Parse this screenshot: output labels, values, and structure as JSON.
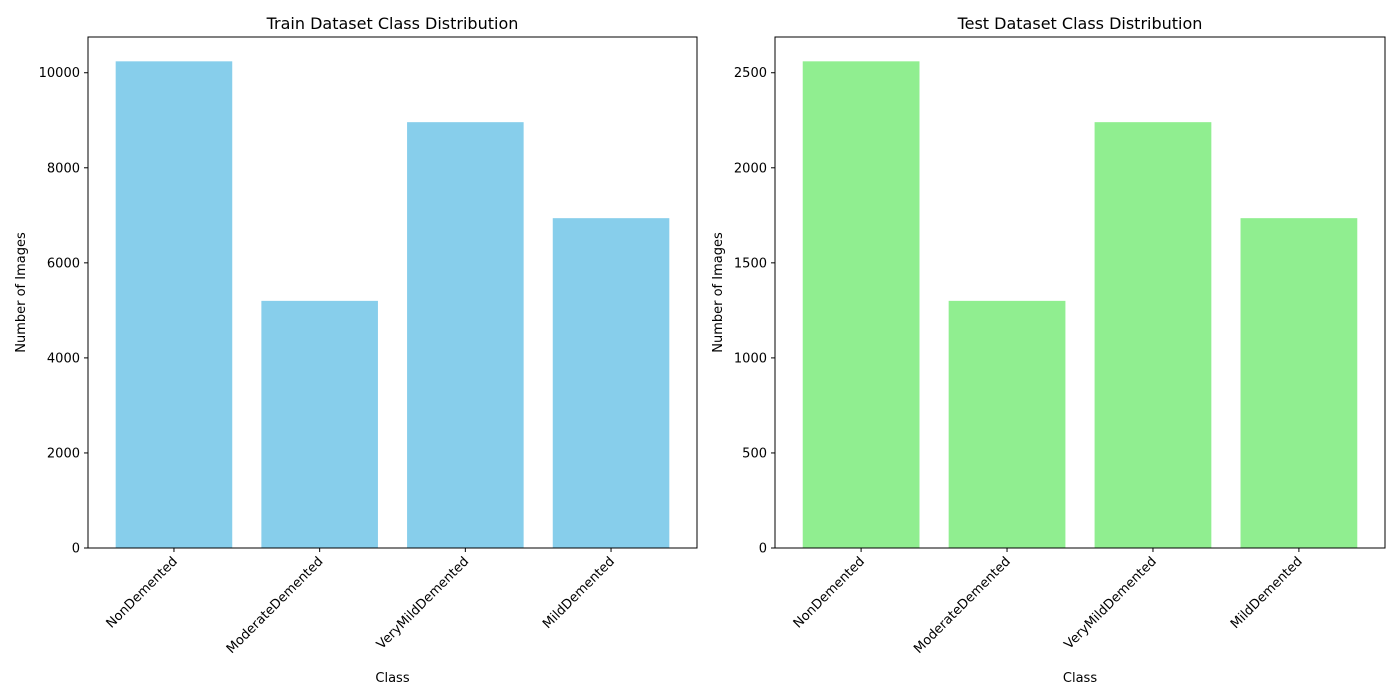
{
  "chart_data": [
    {
      "type": "bar",
      "title": "Train Dataset Class Distribution",
      "xlabel": "Class",
      "ylabel": "Number of Images",
      "categories": [
        "NonDemented",
        "ModerateDemented",
        "VeryMildDemented",
        "MildDemented"
      ],
      "values": [
        10240,
        5200,
        8960,
        6940
      ],
      "ylim": [
        0,
        10752
      ],
      "yticks": [
        0,
        2000,
        4000,
        6000,
        8000,
        10000
      ],
      "ytick_labels": [
        "0",
        "2000",
        "4000",
        "6000",
        "8000",
        "10000"
      ],
      "bar_color": "#87ceeb",
      "grid": false
    },
    {
      "type": "bar",
      "title": "Test Dataset Class Distribution",
      "xlabel": "Class",
      "ylabel": "Number of Images",
      "categories": [
        "NonDemented",
        "ModerateDemented",
        "VeryMildDemented",
        "MildDemented"
      ],
      "values": [
        2560,
        1300,
        2240,
        1735
      ],
      "ylim": [
        0,
        2688
      ],
      "yticks": [
        0,
        500,
        1000,
        1500,
        2000,
        2500
      ],
      "ytick_labels": [
        "0",
        "500",
        "1000",
        "1500",
        "2000",
        "2500"
      ],
      "bar_color": "#90ee90",
      "grid": false
    }
  ]
}
